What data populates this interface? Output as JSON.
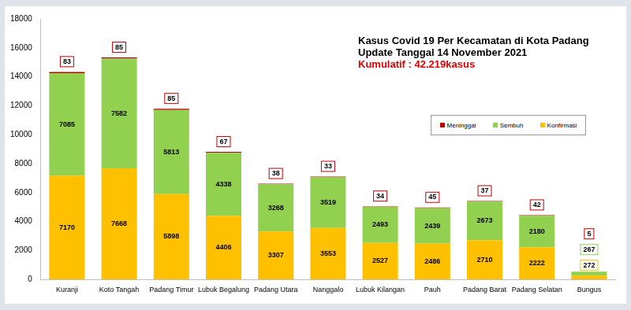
{
  "chart_data": {
    "type": "bar",
    "title": "Kasus Covid 19 Per Kecamatan  di Kota Padang",
    "subtitle": "Update Tanggal  14 November 2021",
    "annotations": [
      "Kumulatif  : 42.219kasus"
    ],
    "categories": [
      "Kuranji",
      "Koto Tangah",
      "Padang Timur",
      "Lubuk Begalung",
      "Padang Utara",
      "Nanggalo",
      "Lubuk Kilangan",
      "Pauh",
      "Padang Barat",
      "Padang Selatan",
      "Bungus"
    ],
    "series": [
      {
        "name": "Konfirmasi",
        "color": "#ffc000",
        "values": [
          7170,
          7668,
          5898,
          4406,
          3307,
          3553,
          2527,
          2486,
          2710,
          2222,
          272
        ]
      },
      {
        "name": "Sembuh",
        "color": "#92d050",
        "values": [
          7085,
          7582,
          5813,
          4338,
          3268,
          3519,
          2493,
          2439,
          2673,
          2180,
          267
        ]
      },
      {
        "name": "Meninggal",
        "color": "#c00000",
        "values": [
          83,
          85,
          85,
          67,
          38,
          33,
          34,
          45,
          37,
          42,
          5
        ]
      }
    ],
    "stacked": true,
    "data_labels": true,
    "legend": "top-right",
    "grid": false,
    "ylim": [
      0,
      18000
    ],
    "yticks": [
      0,
      2000,
      4000,
      6000,
      8000,
      10000,
      12000,
      14000,
      16000,
      18000
    ]
  }
}
